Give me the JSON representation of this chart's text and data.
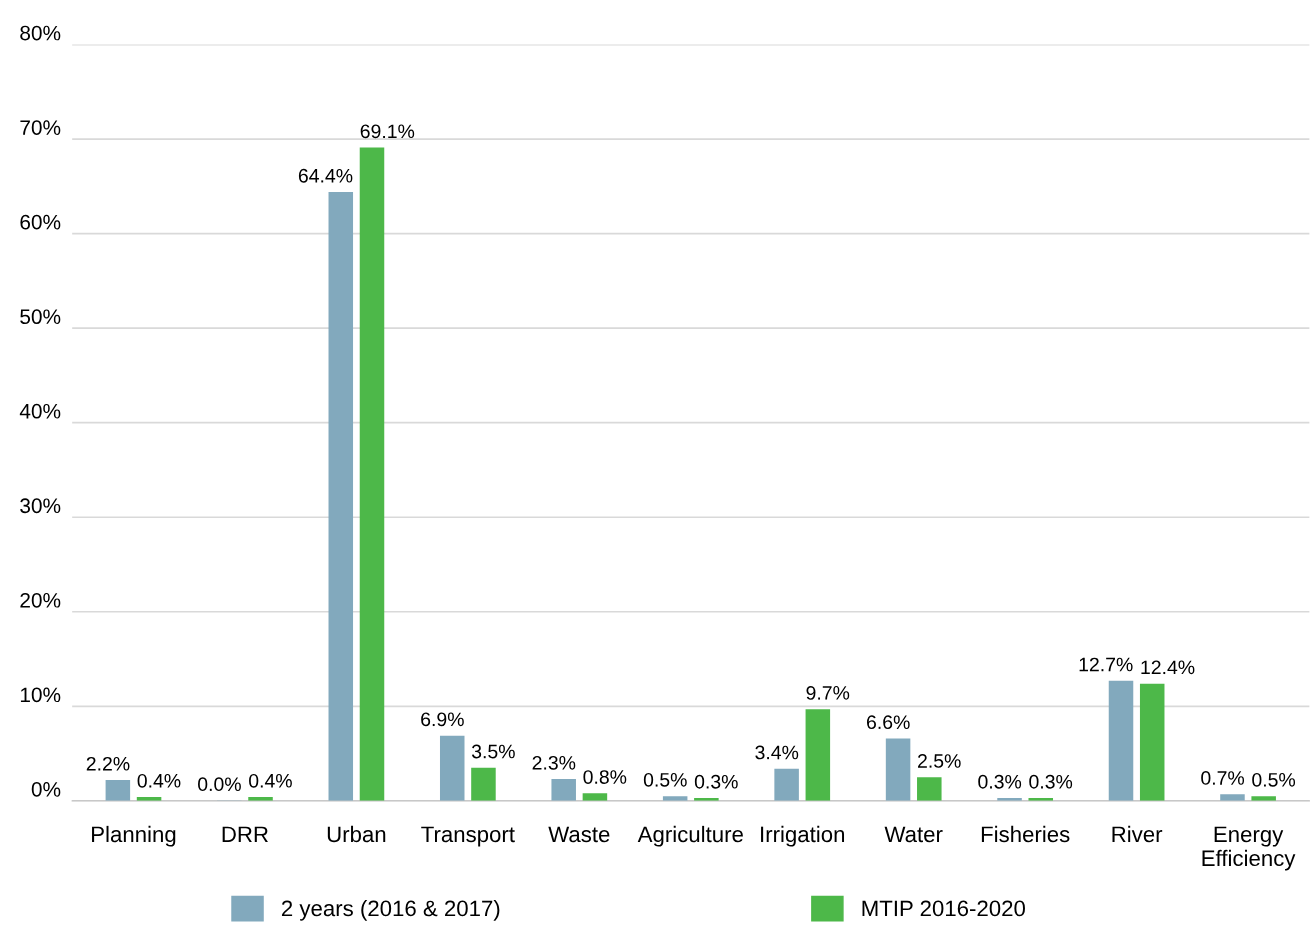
{
  "chart_data": {
    "type": "bar",
    "categories": [
      "Planning",
      "DRR",
      "Urban",
      "Transport",
      "Waste",
      "Agriculture",
      "Irrigation",
      "Water",
      "Fisheries",
      "River",
      "Energy\nEfficiency"
    ],
    "series": [
      {
        "name": "2 years (2016 & 2017)",
        "color": "#82a9bd",
        "values": [
          2.2,
          0.04,
          64.4,
          6.9,
          2.3,
          0.5,
          3.4,
          6.6,
          0.3,
          12.7,
          0.7
        ],
        "value_labels": [
          "2.2%",
          "0.0%",
          "64.4%",
          "6.9%",
          "2.3%",
          "0.5%",
          "3.4%",
          "6.6%",
          "0.3%",
          "12.7%",
          "0.7%"
        ]
      },
      {
        "name": "MTIP 2016-2020",
        "color": "#4db849",
        "values": [
          0.4,
          0.4,
          69.1,
          3.5,
          0.8,
          0.3,
          9.7,
          2.5,
          0.3,
          12.4,
          0.5
        ],
        "value_labels": [
          "0.4%",
          "0.4%",
          "69.1%",
          "3.5%",
          "0.8%",
          "0.3%",
          "9.7%",
          "2.5%",
          "0.3%",
          "12.4%",
          "0.5%"
        ]
      }
    ],
    "ylim": [
      0,
      80
    ],
    "yticks": [
      {
        "value": 0,
        "label": "0%"
      },
      {
        "value": 10,
        "label": "10%"
      },
      {
        "value": 20,
        "label": "20%"
      },
      {
        "value": 30,
        "label": "30%"
      },
      {
        "value": 40,
        "label": "40%"
      },
      {
        "value": 50,
        "label": "50%"
      },
      {
        "value": 60,
        "label": "60%"
      },
      {
        "value": 70,
        "label": "70%"
      },
      {
        "value": 80,
        "label": "80%"
      }
    ],
    "grid": "y",
    "legend": "bottom"
  }
}
